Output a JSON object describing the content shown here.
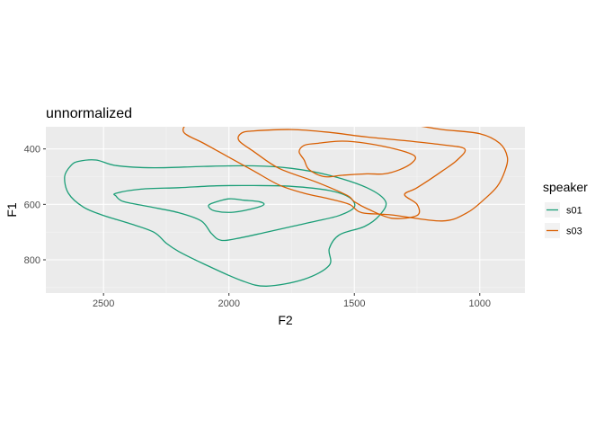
{
  "chart_data": {
    "type": "line",
    "subtype": "density-contour",
    "title": "unnormalized",
    "xlabel": "F2",
    "ylabel": "F1",
    "x_reversed": true,
    "y_reversed": true,
    "xlim": [
      2730,
      820
    ],
    "ylim": [
      320,
      920
    ],
    "x_ticks": [
      2500,
      2000,
      1500,
      1000
    ],
    "y_ticks": [
      400,
      600,
      800
    ],
    "grid": true,
    "legend": {
      "title": "speaker",
      "position": "right"
    },
    "series": [
      {
        "name": "s01",
        "color": "#1b9e77",
        "contours": [
          [
            [
              2600,
              445
            ],
            [
              2530,
              440
            ],
            [
              2450,
              460
            ],
            [
              2300,
              468
            ],
            [
              2100,
              463
            ],
            [
              1900,
              461
            ],
            [
              1750,
              470
            ],
            [
              1600,
              495
            ],
            [
              1450,
              540
            ],
            [
              1375,
              590
            ],
            [
              1400,
              640
            ],
            [
              1460,
              680
            ],
            [
              1560,
              710
            ],
            [
              1600,
              760
            ],
            [
              1600,
              820
            ],
            [
              1700,
              870
            ],
            [
              1850,
              895
            ],
            [
              1950,
              875
            ],
            [
              2100,
              815
            ],
            [
              2200,
              770
            ],
            [
              2250,
              740
            ],
            [
              2300,
              700
            ],
            [
              2400,
              668
            ],
            [
              2500,
              640
            ],
            [
              2580,
              610
            ],
            [
              2640,
              560
            ],
            [
              2655,
              500
            ],
            [
              2630,
              460
            ],
            [
              2600,
              445
            ]
          ],
          [
            [
              2450,
              560
            ],
            [
              2350,
              545
            ],
            [
              2200,
              540
            ],
            [
              2050,
              533
            ],
            [
              1900,
              532
            ],
            [
              1750,
              535
            ],
            [
              1600,
              550
            ],
            [
              1520,
              575
            ],
            [
              1500,
              610
            ],
            [
              1560,
              640
            ],
            [
              1650,
              660
            ],
            [
              1750,
              680
            ],
            [
              1850,
              700
            ],
            [
              1950,
              720
            ],
            [
              2030,
              730
            ],
            [
              2070,
              705
            ],
            [
              2110,
              660
            ],
            [
              2200,
              630
            ],
            [
              2320,
              608
            ],
            [
              2420,
              590
            ],
            [
              2450,
              570
            ],
            [
              2450,
              560
            ]
          ],
          [
            [
              2070,
              597
            ],
            [
              2000,
              580
            ],
            [
              1940,
              585
            ],
            [
              1880,
              590
            ],
            [
              1860,
              600
            ],
            [
              1890,
              612
            ],
            [
              1980,
              628
            ],
            [
              2050,
              625
            ],
            [
              2080,
              610
            ],
            [
              2070,
              597
            ]
          ]
        ]
      },
      {
        "name": "s03",
        "color": "#d95f02",
        "contours": [
          [
            [
              2150,
              305
            ],
            [
              2000,
              290
            ],
            [
              1800,
              286
            ],
            [
              1650,
              290
            ],
            [
              1500,
              300
            ],
            [
              1300,
              310
            ],
            [
              1150,
              330
            ],
            [
              1000,
              345
            ],
            [
              920,
              380
            ],
            [
              890,
              430
            ],
            [
              900,
              480
            ],
            [
              930,
              535
            ],
            [
              980,
              580
            ],
            [
              1050,
              630
            ],
            [
              1150,
              660
            ],
            [
              1350,
              638
            ],
            [
              1470,
              630
            ],
            [
              1520,
              600
            ],
            [
              1600,
              580
            ],
            [
              1700,
              560
            ],
            [
              1800,
              530
            ],
            [
              1900,
              480
            ],
            [
              2000,
              430
            ],
            [
              2100,
              380
            ],
            [
              2180,
              340
            ],
            [
              2150,
              305
            ]
          ],
          [
            [
              1950,
              343
            ],
            [
              1900,
              335
            ],
            [
              1750,
              330
            ],
            [
              1600,
              340
            ],
            [
              1450,
              357
            ],
            [
              1300,
              370
            ],
            [
              1150,
              385
            ],
            [
              1060,
              400
            ],
            [
              1090,
              440
            ],
            [
              1150,
              480
            ],
            [
              1250,
              540
            ],
            [
              1300,
              565
            ],
            [
              1250,
              600
            ],
            [
              1250,
              640
            ],
            [
              1350,
              650
            ],
            [
              1450,
              615
            ],
            [
              1500,
              590
            ],
            [
              1530,
              567
            ],
            [
              1650,
              520
            ],
            [
              1800,
              470
            ],
            [
              1900,
              410
            ],
            [
              1960,
              370
            ],
            [
              1950,
              343
            ]
          ],
          [
            [
              1700,
              387
            ],
            [
              1650,
              380
            ],
            [
              1550,
              372
            ],
            [
              1450,
              380
            ],
            [
              1330,
              402
            ],
            [
              1260,
              425
            ],
            [
              1270,
              450
            ],
            [
              1320,
              475
            ],
            [
              1380,
              490
            ],
            [
              1450,
              490
            ],
            [
              1550,
              495
            ],
            [
              1620,
              500
            ],
            [
              1680,
              475
            ],
            [
              1700,
              440
            ],
            [
              1720,
              410
            ],
            [
              1700,
              387
            ]
          ]
        ]
      }
    ]
  }
}
